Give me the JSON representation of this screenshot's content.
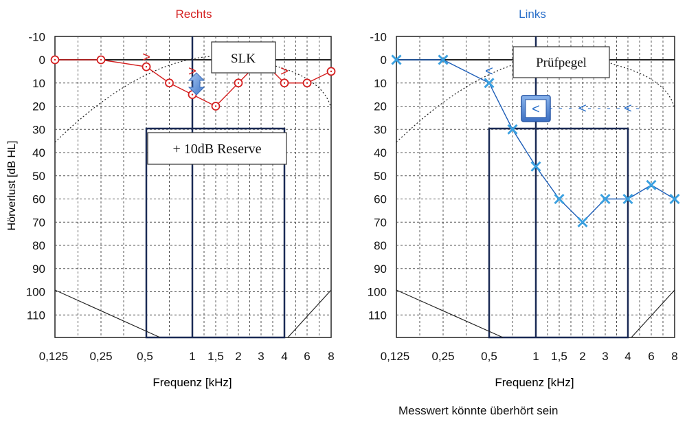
{
  "chart_data": [
    {
      "type": "line",
      "title": "Rechts",
      "title_color": "#d42020",
      "xlabel": "Frequenz [kHz]",
      "ylabel": "Hörverlust [dB HL]",
      "x_ticks": [
        "0,125",
        "0,25",
        "0,5",
        "1",
        "1,5",
        "2",
        "3",
        "4",
        "6",
        "8"
      ],
      "y_ticks": [
        -10,
        0,
        10,
        20,
        30,
        40,
        50,
        60,
        70,
        80,
        90,
        100,
        110
      ],
      "ylim": [
        -10,
        120
      ],
      "y_inverted": true,
      "grid": true,
      "series": [
        {
          "marker": "circle",
          "color": "#d42020",
          "points": [
            {
              "x": "0,125",
              "y": 0
            },
            {
              "x": "0,25",
              "y": 0
            },
            {
              "x": "0,5",
              "y": 3
            },
            {
              "x": "0,75",
              "y": 10
            },
            {
              "x": "1",
              "y": 15
            },
            {
              "x": "1,5",
              "y": 20
            },
            {
              "x": "2",
              "y": 10
            },
            {
              "x": "3",
              "y": 0
            },
            {
              "x": "4",
              "y": 10
            },
            {
              "x": "6",
              "y": 10
            },
            {
              "x": "8",
              "y": 5
            }
          ]
        }
      ],
      "symbols": [
        {
          "x": "0,5",
          "y": -1,
          "text": ">",
          "color": "#d42020"
        },
        {
          "x": "1",
          "y": 5,
          "text": ">",
          "color": "#d42020"
        },
        {
          "x": "4",
          "y": 5,
          "text": ">",
          "color": "#d42020"
        }
      ],
      "annotations": [
        {
          "text": "SLK",
          "style": "box"
        },
        {
          "text": "+ 10dB Reserve",
          "style": "box"
        }
      ],
      "arrow_icon": "updown-arrow-icon",
      "arrow_color": "#5b8fd6"
    },
    {
      "type": "line",
      "title": "Links",
      "title_color": "#2a6fc9",
      "xlabel": "Frequenz [kHz]",
      "x_ticks": [
        "0,125",
        "0,25",
        "0,5",
        "1",
        "1,5",
        "2",
        "3",
        "4",
        "6",
        "8"
      ],
      "y_ticks": [
        -10,
        0,
        10,
        20,
        30,
        40,
        50,
        60,
        70,
        80,
        90,
        100,
        110
      ],
      "ylim": [
        -10,
        120
      ],
      "y_inverted": true,
      "grid": true,
      "series": [
        {
          "marker": "x",
          "color": "#1f5fb8",
          "marker_color": "#3aa0e0",
          "points": [
            {
              "x": "0,125",
              "y": 0
            },
            {
              "x": "0,25",
              "y": 0
            },
            {
              "x": "0,5",
              "y": 10
            },
            {
              "x": "0,75",
              "y": 30
            },
            {
              "x": "1",
              "y": 46
            },
            {
              "x": "1,5",
              "y": 60
            },
            {
              "x": "2",
              "y": 70
            },
            {
              "x": "3",
              "y": 60
            },
            {
              "x": "4",
              "y": 60
            },
            {
              "x": "6",
              "y": 54
            },
            {
              "x": "8",
              "y": 60
            }
          ]
        }
      ],
      "symbols": [
        {
          "x": "0,5",
          "y": 5,
          "text": "<",
          "color": "#2a6fc9"
        },
        {
          "x": "2",
          "y": 21,
          "text": "<",
          "color": "#2a6fc9"
        },
        {
          "x": "4",
          "y": 21,
          "text": "<",
          "color": "#2a6fc9"
        }
      ],
      "annotations": [
        {
          "text": "Prüfpegel",
          "style": "box"
        }
      ],
      "highlight_symbol": {
        "x": "1",
        "y": 21,
        "text": "<"
      }
    }
  ],
  "footer_note": "Messwert könnte überhört sein"
}
